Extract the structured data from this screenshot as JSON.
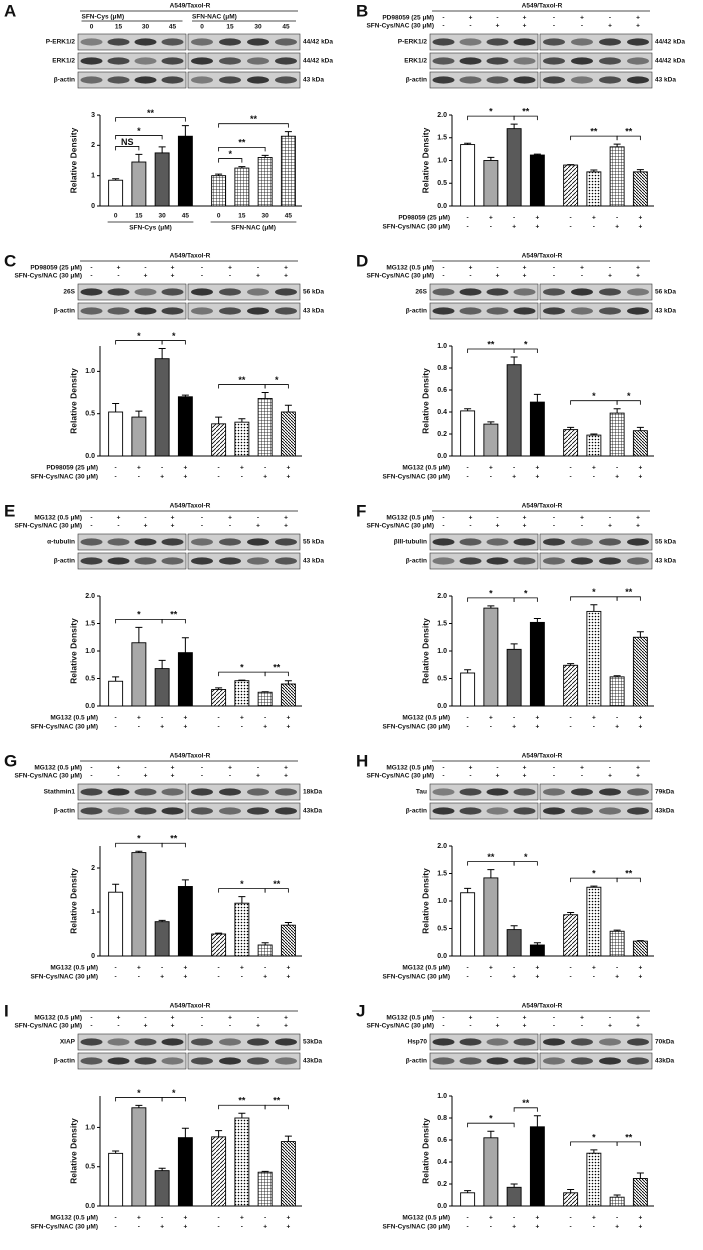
{
  "chart_data": [
    {
      "type": "bar",
      "panel": "A",
      "header": "A549/Taxol-R",
      "ylabel": "Relative Density",
      "groups": [
        "SFN-Cys (μM)",
        "SFN-NAC (μM)"
      ],
      "categories": [
        "0",
        "15",
        "30",
        "45",
        "0",
        "15",
        "30",
        "45"
      ],
      "blots": [
        {
          "label": "P-ERK1/2",
          "size": "44/42 kDa"
        },
        {
          "label": "ERK1/2",
          "size": "44/42 kDa"
        },
        {
          "label": "β-actin",
          "size": "43 kDa"
        }
      ],
      "values": [
        0.85,
        1.45,
        1.75,
        2.3,
        1.0,
        1.25,
        1.6,
        2.3
      ],
      "errors": [
        0.05,
        0.25,
        0.2,
        0.35,
        0.05,
        0.05,
        0.07,
        0.15
      ],
      "colors": [
        "#ffffff",
        "#a8a8a8",
        "#5a5a5a",
        "#000000",
        "pattern:grid",
        "pattern:grid",
        "pattern:grid",
        "pattern:grid"
      ],
      "ylim": [
        0,
        3
      ],
      "yticks": [
        0,
        1,
        2,
        3
      ],
      "annotations": [
        {
          "from": 0,
          "to": 1,
          "label": "NS"
        },
        {
          "from": 0,
          "to": 2,
          "label": "*"
        },
        {
          "from": 0,
          "to": 3,
          "label": "**"
        },
        {
          "from": 4,
          "to": 5,
          "label": "*"
        },
        {
          "from": 4,
          "to": 6,
          "label": "**"
        },
        {
          "from": 4,
          "to": 7,
          "label": "**"
        }
      ]
    },
    {
      "type": "bar",
      "panel": "B",
      "header": "A549/Taxol-R",
      "ylabel": "Relative Density",
      "treatments": [
        {
          "name": "PD98059 (25 μM)",
          "signs": [
            "-",
            "+",
            "-",
            "+",
            "-",
            "+",
            "-",
            "+"
          ]
        },
        {
          "name": "SFN-Cys/NAC (30 μM)",
          "signs": [
            "-",
            "-",
            "+",
            "+",
            "-",
            "-",
            "+",
            "+"
          ]
        }
      ],
      "blots": [
        {
          "label": "P-ERK1/2",
          "size": "44/42 kDa"
        },
        {
          "label": "ERK1/2",
          "size": "44/42 kDa"
        },
        {
          "label": "β-actin",
          "size": "43 kDa"
        }
      ],
      "values": [
        1.35,
        1.0,
        1.7,
        1.12,
        0.9,
        0.75,
        1.3,
        0.75
      ],
      "errors": [
        0.03,
        0.07,
        0.1,
        0.02,
        0.01,
        0.04,
        0.06,
        0.05
      ],
      "colors": [
        "#ffffff",
        "#a8a8a8",
        "#5a5a5a",
        "#000000",
        "pattern:diag",
        "pattern:dots",
        "pattern:grid",
        "pattern:diag2"
      ],
      "ylim": [
        0,
        2
      ],
      "yticks": [
        {
          "value": 0,
          "label": "0.0"
        },
        {
          "value": 0.5,
          "label": "0.5"
        },
        {
          "value": 1,
          "label": "1.0"
        },
        {
          "value": 1.5,
          "label": "1.5"
        },
        {
          "value": 2,
          "label": "2.0"
        }
      ],
      "annotations": [
        {
          "from": 0,
          "to": 2,
          "label": "*"
        },
        {
          "from": 2,
          "to": 3,
          "label": "**"
        },
        {
          "from": 4,
          "to": 6,
          "label": "**"
        },
        {
          "from": 6,
          "to": 7,
          "label": "**"
        }
      ]
    },
    {
      "type": "bar",
      "panel": "C",
      "header": "A549/Taxol-R",
      "ylabel": "Relative Density",
      "treatments": [
        {
          "name": "PD98059 (25 μM)",
          "signs": [
            "-",
            "+",
            "-",
            "+",
            "-",
            "+",
            "-",
            "+"
          ]
        },
        {
          "name": "SFN-Cys/NAC (30 μM)",
          "signs": [
            "-",
            "-",
            "+",
            "+",
            "-",
            "-",
            "+",
            "+"
          ]
        }
      ],
      "blots": [
        {
          "label": "26S",
          "size": "56 kDa"
        },
        {
          "label": "β-actin",
          "size": "43 kDa"
        }
      ],
      "values": [
        0.52,
        0.46,
        1.15,
        0.7,
        0.38,
        0.4,
        0.68,
        0.52
      ],
      "errors": [
        0.1,
        0.07,
        0.12,
        0.02,
        0.08,
        0.04,
        0.07,
        0.08
      ],
      "colors": [
        "#ffffff",
        "#a8a8a8",
        "#5a5a5a",
        "#000000",
        "pattern:diag",
        "pattern:dots",
        "pattern:grid",
        "pattern:diag2"
      ],
      "ylim": [
        0,
        1.3
      ],
      "yticks": [
        {
          "value": 0,
          "label": "0.0"
        },
        {
          "value": 0.5,
          "label": "0.5"
        },
        {
          "value": 1,
          "label": "1.0"
        }
      ],
      "annotations": [
        {
          "from": 0,
          "to": 2,
          "label": "*"
        },
        {
          "from": 2,
          "to": 3,
          "label": "*"
        },
        {
          "from": 4,
          "to": 6,
          "label": "**"
        },
        {
          "from": 6,
          "to": 7,
          "label": "*"
        }
      ]
    },
    {
      "type": "bar",
      "panel": "D",
      "header": "A549/Taxol-R",
      "ylabel": "Relative Density",
      "treatments": [
        {
          "name": "MG132 (0.5 μM)",
          "signs": [
            "-",
            "+",
            "-",
            "+",
            "-",
            "+",
            "-",
            "+"
          ]
        },
        {
          "name": "SFN-Cys/NAC (30 μM)",
          "signs": [
            "-",
            "-",
            "+",
            "+",
            "-",
            "-",
            "+",
            "+"
          ]
        }
      ],
      "blots": [
        {
          "label": "26S",
          "size": "56 kDa"
        },
        {
          "label": "β-actin",
          "size": "43 kDa"
        }
      ],
      "values": [
        0.41,
        0.29,
        0.83,
        0.49,
        0.24,
        0.19,
        0.39,
        0.23
      ],
      "errors": [
        0.02,
        0.02,
        0.07,
        0.07,
        0.02,
        0.01,
        0.04,
        0.03
      ],
      "colors": [
        "#ffffff",
        "#a8a8a8",
        "#5a5a5a",
        "#000000",
        "pattern:diag",
        "pattern:dots",
        "pattern:grid",
        "pattern:diag2"
      ],
      "ylim": [
        0,
        1
      ],
      "yticks": [
        {
          "value": 0,
          "label": "0.0"
        },
        {
          "value": 0.2,
          "label": "0.2"
        },
        {
          "value": 0.4,
          "label": "0.4"
        },
        {
          "value": 0.6,
          "label": "0.6"
        },
        {
          "value": 0.8,
          "label": "0.8"
        },
        {
          "value": 1,
          "label": "1.0"
        }
      ],
      "annotations": [
        {
          "from": 0,
          "to": 2,
          "label": "**"
        },
        {
          "from": 2,
          "to": 3,
          "label": "*"
        },
        {
          "from": 4,
          "to": 6,
          "label": "*"
        },
        {
          "from": 6,
          "to": 7,
          "label": "*"
        }
      ]
    },
    {
      "type": "bar",
      "panel": "E",
      "header": "A549/Taxol-R",
      "ylabel": "Relative Density",
      "treatments": [
        {
          "name": "MG132 (0.5 μM)",
          "signs": [
            "-",
            "+",
            "-",
            "+",
            "-",
            "+",
            "-",
            "+"
          ]
        },
        {
          "name": "SFN-Cys/NAC (30 μM)",
          "signs": [
            "-",
            "-",
            "+",
            "+",
            "-",
            "-",
            "+",
            "+"
          ]
        }
      ],
      "blots": [
        {
          "label": "α-tubulin",
          "size": "55 kDa"
        },
        {
          "label": "β-actin",
          "size": "43 kDa"
        }
      ],
      "values": [
        0.45,
        1.15,
        0.68,
        0.97,
        0.3,
        0.46,
        0.25,
        0.4
      ],
      "errors": [
        0.08,
        0.28,
        0.15,
        0.27,
        0.03,
        0.01,
        0.01,
        0.06
      ],
      "colors": [
        "#ffffff",
        "#a8a8a8",
        "#5a5a5a",
        "#000000",
        "pattern:diag",
        "pattern:dots",
        "pattern:grid",
        "pattern:diag2"
      ],
      "ylim": [
        0,
        2
      ],
      "yticks": [
        {
          "value": 0,
          "label": "0.0"
        },
        {
          "value": 0.5,
          "label": "0.5"
        },
        {
          "value": 1,
          "label": "1.0"
        },
        {
          "value": 1.5,
          "label": "1.5"
        },
        {
          "value": 2,
          "label": "2.0"
        }
      ],
      "annotations": [
        {
          "from": 0,
          "to": 2,
          "label": "*"
        },
        {
          "from": 2,
          "to": 3,
          "label": "**"
        },
        {
          "from": 4,
          "to": 6,
          "label": "*"
        },
        {
          "from": 6,
          "to": 7,
          "label": "**"
        }
      ]
    },
    {
      "type": "bar",
      "panel": "F",
      "header": "A549/Taxol-R",
      "ylabel": "Relative Density",
      "treatments": [
        {
          "name": "MG132 (0.5 μM)",
          "signs": [
            "-",
            "+",
            "-",
            "+",
            "-",
            "+",
            "-",
            "+"
          ]
        },
        {
          "name": "SFN-Cys/NAC (30 μM)",
          "signs": [
            "-",
            "-",
            "+",
            "+",
            "-",
            "-",
            "+",
            "+"
          ]
        }
      ],
      "blots": [
        {
          "label": "βIII-tubulin",
          "size": "55 kDa"
        },
        {
          "label": "β-actin",
          "size": "43 kDa"
        }
      ],
      "values": [
        0.6,
        1.78,
        1.03,
        1.52,
        0.74,
        1.72,
        0.53,
        1.25
      ],
      "errors": [
        0.06,
        0.04,
        0.1,
        0.07,
        0.03,
        0.12,
        0.02,
        0.1
      ],
      "colors": [
        "#ffffff",
        "#a8a8a8",
        "#5a5a5a",
        "#000000",
        "pattern:diag",
        "pattern:dots",
        "pattern:grid",
        "pattern:diag2"
      ],
      "ylim": [
        0,
        2
      ],
      "yticks": [
        {
          "value": 0,
          "label": "0.0"
        },
        {
          "value": 0.5,
          "label": "0.5"
        },
        {
          "value": 1,
          "label": "1.0"
        },
        {
          "value": 1.5,
          "label": "1.5"
        },
        {
          "value": 2,
          "label": "2.0"
        }
      ],
      "annotations": [
        {
          "from": 0,
          "to": 2,
          "label": "*"
        },
        {
          "from": 2,
          "to": 3,
          "label": "*"
        },
        {
          "from": 4,
          "to": 6,
          "label": "*"
        },
        {
          "from": 6,
          "to": 7,
          "label": "**"
        }
      ]
    },
    {
      "type": "bar",
      "panel": "G",
      "header": "A549/Taxol-R",
      "ylabel": "Relative Density",
      "treatments": [
        {
          "name": "MG132 (0.5 μM)",
          "signs": [
            "-",
            "+",
            "-",
            "+",
            "-",
            "+",
            "-",
            "+"
          ]
        },
        {
          "name": "SFN-Cys/NAC (30 μM)",
          "signs": [
            "-",
            "-",
            "+",
            "+",
            "-",
            "-",
            "+",
            "+"
          ]
        }
      ],
      "blots": [
        {
          "label": "Stathmin1",
          "size": "18kDa"
        },
        {
          "label": "β-actin",
          "size": "43kDa"
        }
      ],
      "values": [
        1.45,
        2.35,
        0.78,
        1.58,
        0.5,
        1.2,
        0.25,
        0.7
      ],
      "errors": [
        0.18,
        0.03,
        0.03,
        0.15,
        0.02,
        0.15,
        0.05,
        0.06
      ],
      "colors": [
        "#ffffff",
        "#a8a8a8",
        "#5a5a5a",
        "#000000",
        "pattern:diag",
        "pattern:dots",
        "pattern:grid",
        "pattern:diag2"
      ],
      "ylim": [
        0,
        2.5
      ],
      "yticks": [
        0,
        1,
        2
      ],
      "annotations": [
        {
          "from": 0,
          "to": 2,
          "label": "*"
        },
        {
          "from": 2,
          "to": 3,
          "label": "**"
        },
        {
          "from": 4,
          "to": 6,
          "label": "*"
        },
        {
          "from": 6,
          "to": 7,
          "label": "**"
        }
      ]
    },
    {
      "type": "bar",
      "panel": "H",
      "header": "A549/Taxol-R",
      "ylabel": "Relative Density",
      "treatments": [
        {
          "name": "MG132 (0.5 μM)",
          "signs": [
            "-",
            "+",
            "-",
            "+",
            "-",
            "+",
            "-",
            "+"
          ]
        },
        {
          "name": "SFN-Cys/NAC (30 μM)",
          "signs": [
            "-",
            "-",
            "+",
            "+",
            "-",
            "-",
            "+",
            "+"
          ]
        }
      ],
      "blots": [
        {
          "label": "Tau",
          "size": "79kDa"
        },
        {
          "label": "β-actin",
          "size": "43kDa"
        }
      ],
      "values": [
        1.15,
        1.42,
        0.48,
        0.2,
        0.75,
        1.25,
        0.45,
        0.27
      ],
      "errors": [
        0.08,
        0.15,
        0.07,
        0.04,
        0.04,
        0.02,
        0.02,
        0.01
      ],
      "colors": [
        "#ffffff",
        "#a8a8a8",
        "#5a5a5a",
        "#000000",
        "pattern:diag",
        "pattern:dots",
        "pattern:grid",
        "pattern:diag2"
      ],
      "ylim": [
        0,
        2
      ],
      "yticks": [
        {
          "value": 0,
          "label": "0.0"
        },
        {
          "value": 0.5,
          "label": "0.5"
        },
        {
          "value": 1,
          "label": "1.0"
        },
        {
          "value": 1.5,
          "label": "1.5"
        },
        {
          "value": 2,
          "label": "2.0"
        }
      ],
      "annotations": [
        {
          "from": 0,
          "to": 2,
          "label": "**"
        },
        {
          "from": 2,
          "to": 3,
          "label": "*"
        },
        {
          "from": 4,
          "to": 6,
          "label": "*"
        },
        {
          "from": 6,
          "to": 7,
          "label": "**"
        }
      ]
    },
    {
      "type": "bar",
      "panel": "I",
      "header": "A549/Taxol-R",
      "ylabel": "Relative Density",
      "treatments": [
        {
          "name": "MG132 (0.5 μM)",
          "signs": [
            "-",
            "+",
            "-",
            "+",
            "-",
            "+",
            "-",
            "+"
          ]
        },
        {
          "name": "SFN-Cys/NAC (30 μM)",
          "signs": [
            "-",
            "-",
            "+",
            "+",
            "-",
            "-",
            "+",
            "+"
          ]
        }
      ],
      "blots": [
        {
          "label": "XIAP",
          "size": "53kDa"
        },
        {
          "label": "β-actin",
          "size": "43kDa"
        }
      ],
      "values": [
        0.67,
        1.25,
        0.45,
        0.87,
        0.88,
        1.12,
        0.43,
        0.82
      ],
      "errors": [
        0.03,
        0.03,
        0.03,
        0.12,
        0.08,
        0.06,
        0.01,
        0.07
      ],
      "colors": [
        "#ffffff",
        "#a8a8a8",
        "#5a5a5a",
        "#000000",
        "pattern:diag",
        "pattern:dots",
        "pattern:grid",
        "pattern:diag2"
      ],
      "ylim": [
        0,
        1.4
      ],
      "yticks": [
        {
          "value": 0,
          "label": "0.0"
        },
        {
          "value": 0.5,
          "label": "0.5"
        },
        {
          "value": 1,
          "label": "1.0"
        }
      ],
      "annotations": [
        {
          "from": 0,
          "to": 2,
          "label": "*"
        },
        {
          "from": 2,
          "to": 3,
          "label": "*"
        },
        {
          "from": 4,
          "to": 6,
          "label": "**"
        },
        {
          "from": 6,
          "to": 7,
          "label": "**"
        }
      ]
    },
    {
      "type": "bar",
      "panel": "J",
      "header": "A549/Taxol-R",
      "ylabel": "Relative Density",
      "treatments": [
        {
          "name": "MG132 (0.5 μM)",
          "signs": [
            "-",
            "+",
            "-",
            "+",
            "-",
            "+",
            "-",
            "+"
          ]
        },
        {
          "name": "SFN-Cys/NAC (30 μM)",
          "signs": [
            "-",
            "-",
            "+",
            "+",
            "-",
            "-",
            "+",
            "+"
          ]
        }
      ],
      "blots": [
        {
          "label": "Hsp70",
          "size": "70kDa"
        },
        {
          "label": "β-actin",
          "size": "43kDa"
        }
      ],
      "values": [
        0.12,
        0.62,
        0.17,
        0.72,
        0.12,
        0.48,
        0.08,
        0.25
      ],
      "errors": [
        0.02,
        0.06,
        0.03,
        0.1,
        0.03,
        0.03,
        0.02,
        0.05
      ],
      "colors": [
        "#ffffff",
        "#a8a8a8",
        "#5a5a5a",
        "#000000",
        "pattern:diag",
        "pattern:dots",
        "pattern:grid",
        "pattern:diag2"
      ],
      "ylim": [
        0,
        1
      ],
      "yticks": [
        {
          "value": 0,
          "label": "0.0"
        },
        {
          "value": 0.2,
          "label": "0.2"
        },
        {
          "value": 0.4,
          "label": "0.4"
        },
        {
          "value": 0.6,
          "label": "0.6"
        },
        {
          "value": 0.8,
          "label": "0.8"
        },
        {
          "value": 1,
          "label": "1.0"
        }
      ],
      "annotations": [
        {
          "from": 0,
          "to": 2,
          "label": "*"
        },
        {
          "from": 2,
          "to": 3,
          "label": "**"
        },
        {
          "from": 4,
          "to": 6,
          "label": "*"
        },
        {
          "from": 6,
          "to": 7,
          "label": "**"
        }
      ]
    }
  ]
}
